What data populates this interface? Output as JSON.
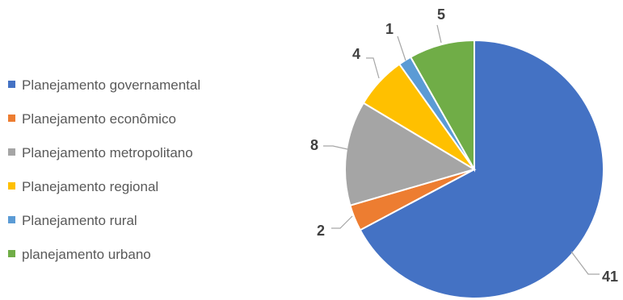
{
  "chart_data": {
    "type": "pie",
    "title": "",
    "legend_position": "left",
    "start_angle_deg": 0,
    "direction": "clockwise",
    "slices": [
      {
        "label": "Planejamento governamental",
        "value": 41,
        "color": "#4472C4"
      },
      {
        "label": "Planejamento econômico",
        "value": 2,
        "color": "#ED7D31"
      },
      {
        "label": "Planejamento metropolitano",
        "value": 8,
        "color": "#A5A5A5"
      },
      {
        "label": "Planejamento regional",
        "value": 4,
        "color": "#FFC000"
      },
      {
        "label": "Planejamento rural",
        "value": 1,
        "color": "#5B9BD5"
      },
      {
        "label": "planejamento urbano",
        "value": 5,
        "color": "#70AD47"
      }
    ]
  }
}
